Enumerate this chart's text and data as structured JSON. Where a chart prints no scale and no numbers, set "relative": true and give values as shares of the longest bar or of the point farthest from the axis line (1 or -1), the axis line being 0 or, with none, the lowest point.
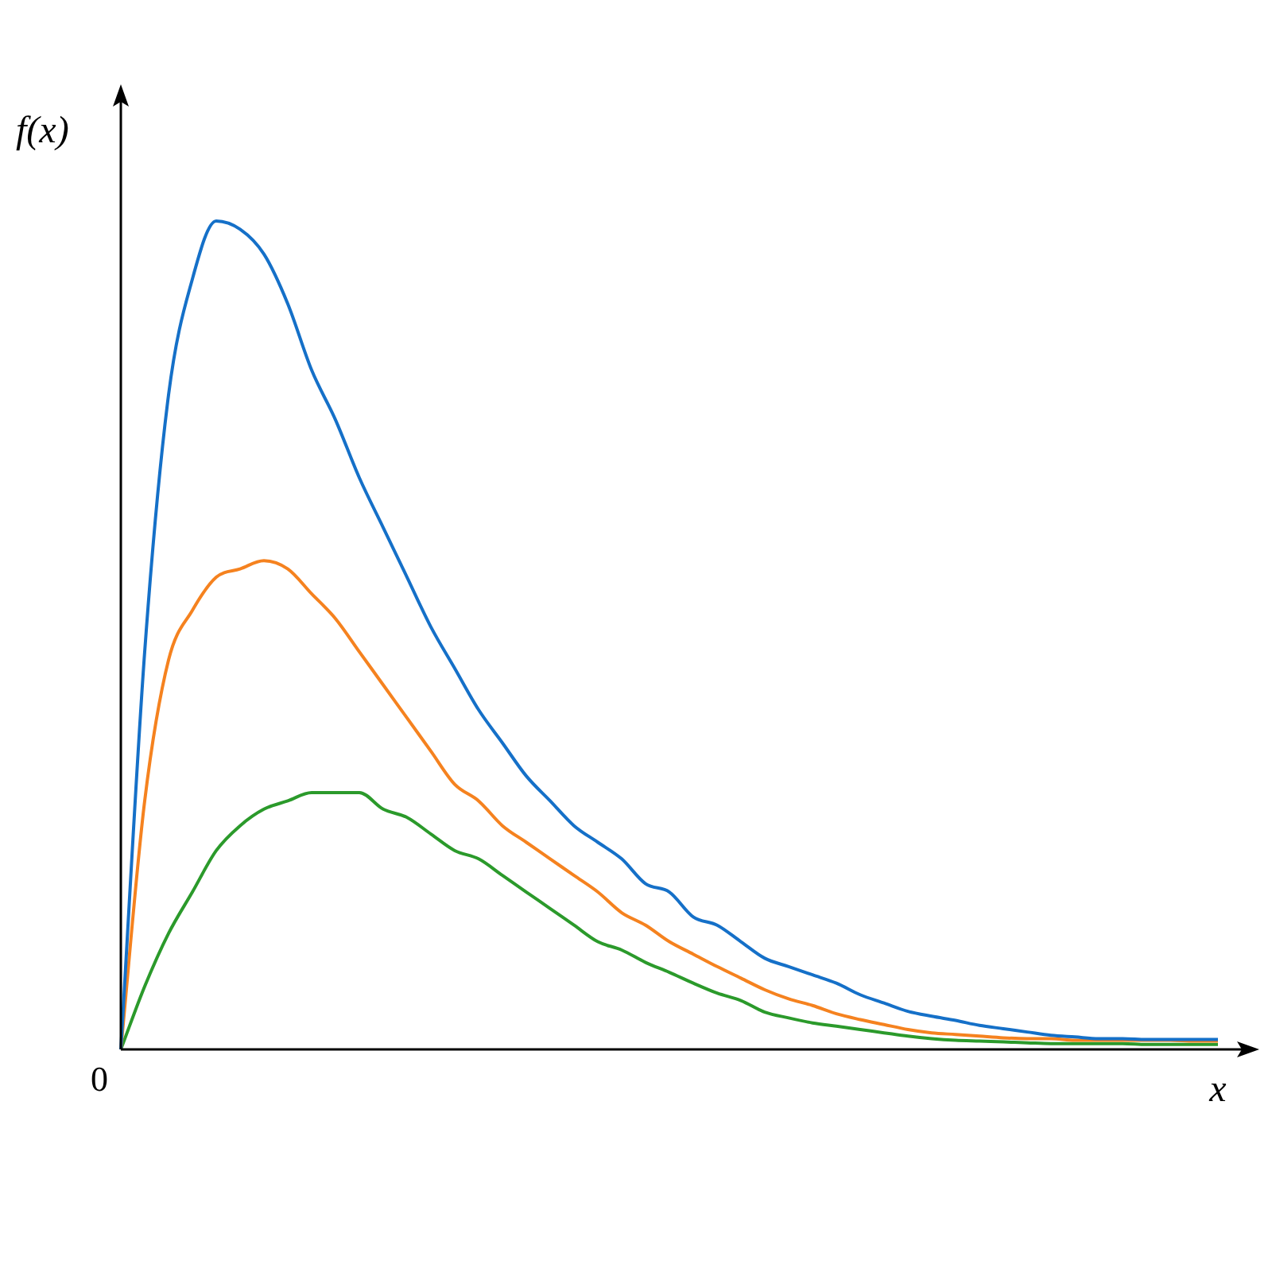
{
  "chart_data": {
    "type": "line",
    "relative": true,
    "xlabel": "x",
    "ylabel": "f(x)",
    "annotations": [
      "0"
    ],
    "categories": [
      null,
      null,
      null,
      null,
      null,
      null,
      null,
      null,
      null,
      null,
      null,
      null,
      null,
      null,
      null,
      null,
      null,
      null,
      null,
      null,
      null,
      null,
      null,
      null,
      null,
      null,
      null,
      null,
      null,
      null,
      null,
      null,
      null,
      null,
      null,
      null,
      null,
      null,
      null,
      null,
      null,
      null,
      null,
      null,
      null,
      null,
      null
    ],
    "series": [
      {
        "color": "#1570c8",
        "values": [
          0,
          0.48,
          0.79,
          0.93,
          1,
          0.99,
          0.96,
          0.9,
          0.82,
          0.76,
          0.69,
          0.63,
          0.57,
          0.51,
          0.46,
          0.41,
          0.37,
          0.33,
          0.3,
          0.27,
          0.25,
          0.23,
          0.2,
          0.19,
          0.16,
          0.15,
          0.13,
          0.11,
          0.1,
          0.09,
          0.08,
          0.066,
          0.056,
          0.046,
          0.04,
          0.035,
          0.029,
          0.025,
          0.021,
          0.017,
          0.015,
          0.013,
          0.013,
          0.012,
          0.012,
          0.012,
          0.012
        ]
      },
      {
        "color": "#f5821f",
        "values": [
          0,
          0.3,
          0.47,
          0.53,
          0.57,
          0.58,
          0.59,
          0.58,
          0.55,
          0.52,
          0.48,
          0.44,
          0.4,
          0.36,
          0.32,
          0.3,
          0.27,
          0.25,
          0.23,
          0.21,
          0.19,
          0.165,
          0.15,
          0.13,
          0.115,
          0.1,
          0.086,
          0.072,
          0.061,
          0.053,
          0.043,
          0.036,
          0.03,
          0.024,
          0.02,
          0.018,
          0.016,
          0.014,
          0.013,
          0.013,
          0.011,
          0.011,
          0.011,
          0.011,
          0.011,
          0.01,
          0.01
        ]
      },
      {
        "color": "#2b9a2b",
        "values": [
          0,
          0.076,
          0.14,
          0.19,
          0.24,
          0.27,
          0.29,
          0.3,
          0.31,
          0.31,
          0.31,
          0.29,
          0.28,
          0.26,
          0.24,
          0.23,
          0.21,
          0.19,
          0.17,
          0.15,
          0.13,
          0.12,
          0.105,
          0.093,
          0.08,
          0.068,
          0.059,
          0.045,
          0.038,
          0.032,
          0.028,
          0.024,
          0.02,
          0.016,
          0.013,
          0.011,
          0.01,
          0.009,
          0.008,
          0.007,
          0.007,
          0.007,
          0.007,
          0.006,
          0.006,
          0.006,
          0.006
        ]
      }
    ]
  }
}
